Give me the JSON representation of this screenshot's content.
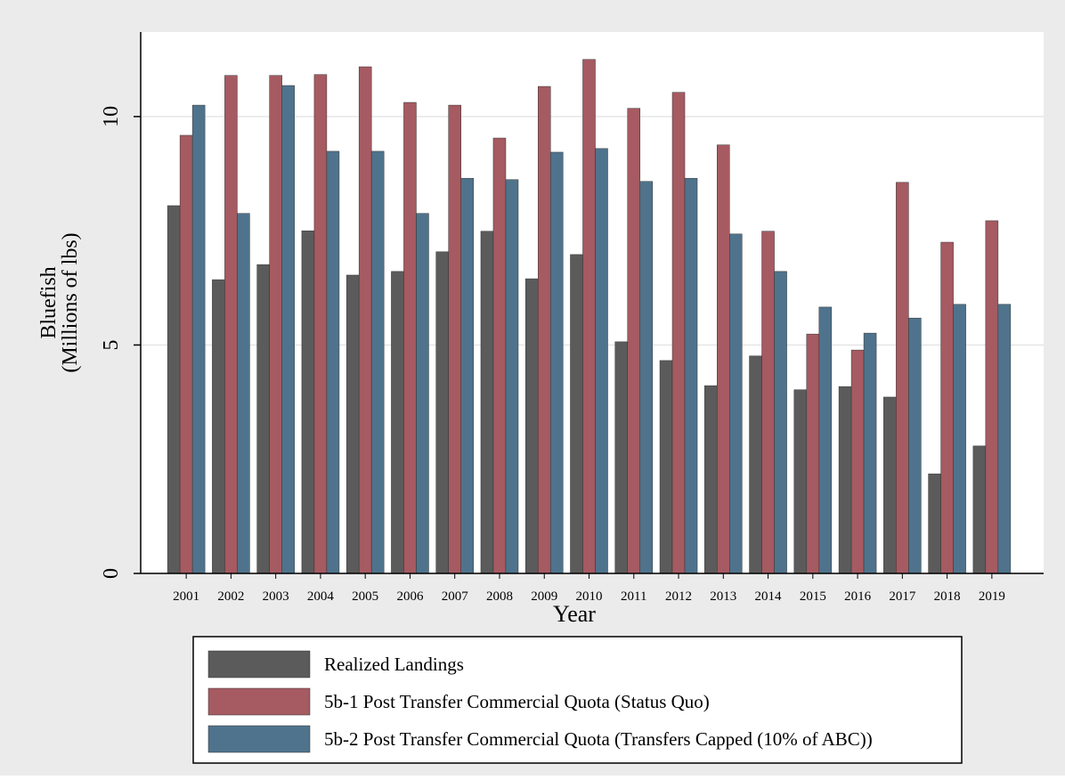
{
  "chart_data": {
    "type": "bar",
    "x_label": "Year",
    "y_label": [
      "Bluefish",
      "(Millions of lbs)"
    ],
    "categories": [
      "2001",
      "2002",
      "2003",
      "2004",
      "2005",
      "2006",
      "2007",
      "2008",
      "2009",
      "2010",
      "2011",
      "2012",
      "2013",
      "2014",
      "2015",
      "2016",
      "2017",
      "2018",
      "2019"
    ],
    "series": [
      {
        "name": "Realized Landings",
        "color": "#5b5b5b",
        "values": [
          8.05,
          6.43,
          6.76,
          7.5,
          6.53,
          6.61,
          7.04,
          7.49,
          6.45,
          6.98,
          5.07,
          4.66,
          4.11,
          4.76,
          4.02,
          4.09,
          3.86,
          2.18,
          2.79
        ]
      },
      {
        "name": "5b-1 Post Transfer Commercial Quota (Status Quo)",
        "color": "#a65a61",
        "values": [
          9.59,
          10.9,
          10.9,
          10.92,
          11.09,
          10.31,
          10.25,
          9.53,
          10.66,
          11.25,
          10.18,
          10.53,
          9.38,
          7.49,
          5.24,
          4.89,
          8.56,
          7.25,
          7.72
        ]
      },
      {
        "name": "5b-2 Post Transfer Commercial Quota (Transfers Capped (10% of ABC))",
        "color": "#4f738c",
        "values": [
          10.25,
          7.88,
          10.68,
          9.24,
          9.24,
          7.88,
          8.65,
          8.62,
          9.22,
          9.3,
          8.58,
          8.65,
          7.43,
          6.61,
          5.83,
          5.26,
          5.59,
          5.89,
          5.89
        ]
      }
    ],
    "ylim": [
      0,
      11.85
    ],
    "yticks": [
      0,
      5,
      10
    ],
    "grid": true,
    "legend": "bottom"
  }
}
